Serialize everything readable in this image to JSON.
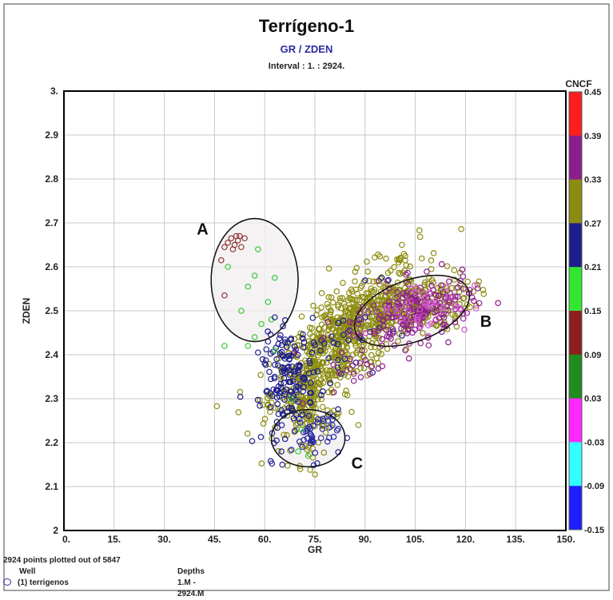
{
  "title": "Terrígeno-1",
  "subtitle": "GR / ZDEN",
  "interval": "Interval : 1. : 2924.",
  "colors": {
    "olive": "#8c8c10",
    "navy": "#1e1e8c",
    "purple": "#8c1e8c",
    "green": "#32c832",
    "maroon": "#8c3232",
    "magenta": "#d250d2",
    "ellipse_fill": "#f3eff1"
  },
  "chart_data": {
    "type": "scatter",
    "xlabel": "GR",
    "ylabel": "ZDEN",
    "xlim": [
      0,
      150
    ],
    "ylim": [
      2,
      3
    ],
    "x_ticks": [
      "0.",
      "15.",
      "30.",
      "45.",
      "60.",
      "75.",
      "90.",
      "105.",
      "120.",
      "135.",
      "150."
    ],
    "y_ticks": [
      "2",
      "2.1",
      "2.2",
      "2.3",
      "2.4",
      "2.5",
      "2.6",
      "2.7",
      "2.8",
      "2.9",
      "3."
    ],
    "grid": true,
    "color_scale": {
      "label": "CNCF",
      "ticks": [
        "0.45",
        "0.39",
        "0.33",
        "0.27",
        "0.21",
        "0.15",
        "0.09",
        "0.03",
        "-0.03",
        "-0.09",
        "-0.15"
      ],
      "bands": [
        "#ff1e1e",
        "#8c1e8c",
        "#8c8c10",
        "#1e1e8c",
        "#32e632",
        "#8c1e1e",
        "#1e8c1e",
        "#ff28ff",
        "#32ffff",
        "#1e1eff"
      ]
    },
    "annotations": [
      {
        "label": "A",
        "cx": 57,
        "cy": 2.57,
        "rx": 13,
        "ry": 0.14
      },
      {
        "label": "B",
        "cx": 104,
        "cy": 2.5,
        "rx": 18,
        "ry": 0.07
      },
      {
        "label": "C",
        "cx": 73,
        "cy": 2.21,
        "rx": 11,
        "ry": 0.065
      }
    ],
    "clusters": [
      {
        "name": "olive-main",
        "color": "#8c8c10",
        "n": 620,
        "cx": 84,
        "cy": 2.44,
        "sx": 11,
        "sy": 0.085,
        "corr": 0.75
      },
      {
        "name": "olive-B",
        "color": "#8c8c10",
        "n": 220,
        "cx": 104,
        "cy": 2.51,
        "sx": 9,
        "sy": 0.035,
        "corr": 0.3
      },
      {
        "name": "olive-low",
        "color": "#8c8c10",
        "n": 160,
        "cx": 73,
        "cy": 2.3,
        "sx": 4,
        "sy": 0.07,
        "corr": 0.2
      },
      {
        "name": "navy-left",
        "color": "#1e1e8c",
        "n": 150,
        "cx": 67,
        "cy": 2.34,
        "sx": 3.8,
        "sy": 0.06,
        "corr": 0.2
      },
      {
        "name": "navy-C",
        "color": "#2828a0",
        "n": 45,
        "cx": 75,
        "cy": 2.22,
        "sx": 3.5,
        "sy": 0.03,
        "corr": 0
      },
      {
        "name": "navy-mid",
        "color": "#1e1e8c",
        "n": 40,
        "cx": 82,
        "cy": 2.4,
        "sx": 7,
        "sy": 0.06,
        "corr": 0.5
      },
      {
        "name": "purple-B",
        "color": "#8c1e8c",
        "n": 170,
        "cx": 106,
        "cy": 2.5,
        "sx": 8,
        "sy": 0.035,
        "corr": 0.3
      },
      {
        "name": "purple-mid",
        "color": "#8c1e8c",
        "n": 40,
        "cx": 90,
        "cy": 2.43,
        "sx": 7,
        "sy": 0.06,
        "corr": 0.5
      },
      {
        "name": "magenta-B",
        "color": "#d250d2",
        "n": 45,
        "cx": 108,
        "cy": 2.51,
        "sx": 7,
        "sy": 0.03,
        "corr": 0.2
      }
    ],
    "points": [
      {
        "x": 50,
        "y": 2.665,
        "c": "#8c3232"
      },
      {
        "x": 51,
        "y": 2.65,
        "c": "#8c3232"
      },
      {
        "x": 52,
        "y": 2.66,
        "c": "#8c3232"
      },
      {
        "x": 49,
        "y": 2.655,
        "c": "#8c3232"
      },
      {
        "x": 53,
        "y": 2.645,
        "c": "#8c3232"
      },
      {
        "x": 51.5,
        "y": 2.67,
        "c": "#8c3232"
      },
      {
        "x": 54,
        "y": 2.665,
        "c": "#8c3232"
      },
      {
        "x": 48,
        "y": 2.645,
        "c": "#8c3232"
      },
      {
        "x": 50.5,
        "y": 2.64,
        "c": "#8c3232"
      },
      {
        "x": 52.5,
        "y": 2.67,
        "c": "#8c3232"
      },
      {
        "x": 47,
        "y": 2.615,
        "c": "#8c3232"
      },
      {
        "x": 48,
        "y": 2.535,
        "c": "#8c3232"
      },
      {
        "x": 58,
        "y": 2.64,
        "c": "#32c832"
      },
      {
        "x": 57,
        "y": 2.58,
        "c": "#32c832"
      },
      {
        "x": 63,
        "y": 2.575,
        "c": "#32c832"
      },
      {
        "x": 55,
        "y": 2.555,
        "c": "#32c832"
      },
      {
        "x": 49,
        "y": 2.6,
        "c": "#32c832"
      },
      {
        "x": 61,
        "y": 2.52,
        "c": "#32c832"
      },
      {
        "x": 53,
        "y": 2.5,
        "c": "#32c832"
      },
      {
        "x": 59,
        "y": 2.47,
        "c": "#32c832"
      },
      {
        "x": 62,
        "y": 2.48,
        "c": "#32c832"
      },
      {
        "x": 55,
        "y": 2.42,
        "c": "#32c832"
      },
      {
        "x": 57,
        "y": 2.44,
        "c": "#32c832"
      },
      {
        "x": 48,
        "y": 2.42,
        "c": "#32c832"
      },
      {
        "x": 68,
        "y": 2.3,
        "c": "#32c832"
      },
      {
        "x": 70,
        "y": 2.18,
        "c": "#32c832"
      },
      {
        "x": 73,
        "y": 2.17,
        "c": "#32c832"
      },
      {
        "x": 71,
        "y": 2.23,
        "c": "#32c832"
      },
      {
        "x": 63,
        "y": 2.41,
        "c": "#32c832"
      },
      {
        "x": 101,
        "y": 2.65,
        "c": "#8c8c10"
      },
      {
        "x": 100,
        "y": 2.61,
        "c": "#8c8c10"
      },
      {
        "x": 102,
        "y": 2.615,
        "c": "#8c8c10"
      },
      {
        "x": 110,
        "y": 2.57,
        "c": "#8c8c10"
      },
      {
        "x": 121,
        "y": 2.54,
        "c": "#8c1e8c"
      },
      {
        "x": 122,
        "y": 2.53,
        "c": "#8c1e8c"
      },
      {
        "x": 120,
        "y": 2.55,
        "c": "#8c8c10"
      },
      {
        "x": 95,
        "y": 2.575,
        "c": "#1e1e8c"
      },
      {
        "x": 97,
        "y": 2.57,
        "c": "#1e1e8c"
      },
      {
        "x": 63,
        "y": 2.485,
        "c": "#1e1e8c"
      },
      {
        "x": 61,
        "y": 2.43,
        "c": "#1e1e8c"
      },
      {
        "x": 58,
        "y": 2.405,
        "c": "#1e1e8c"
      },
      {
        "x": 60,
        "y": 2.38,
        "c": "#1e1e8c"
      },
      {
        "x": 102,
        "y": 2.41,
        "c": "#8c1e8c"
      },
      {
        "x": 88,
        "y": 2.24,
        "c": "#8c8c10"
      },
      {
        "x": 86,
        "y": 2.27,
        "c": "#8c8c10"
      },
      {
        "x": 84,
        "y": 2.31,
        "c": "#8c8c10"
      }
    ]
  },
  "footer": {
    "summary": "2924 points plotted out of 5847",
    "col1_header": "Well",
    "col2_header": "Depths",
    "well": "(1) terrigenos",
    "depths": "1.M - 2924.M"
  }
}
